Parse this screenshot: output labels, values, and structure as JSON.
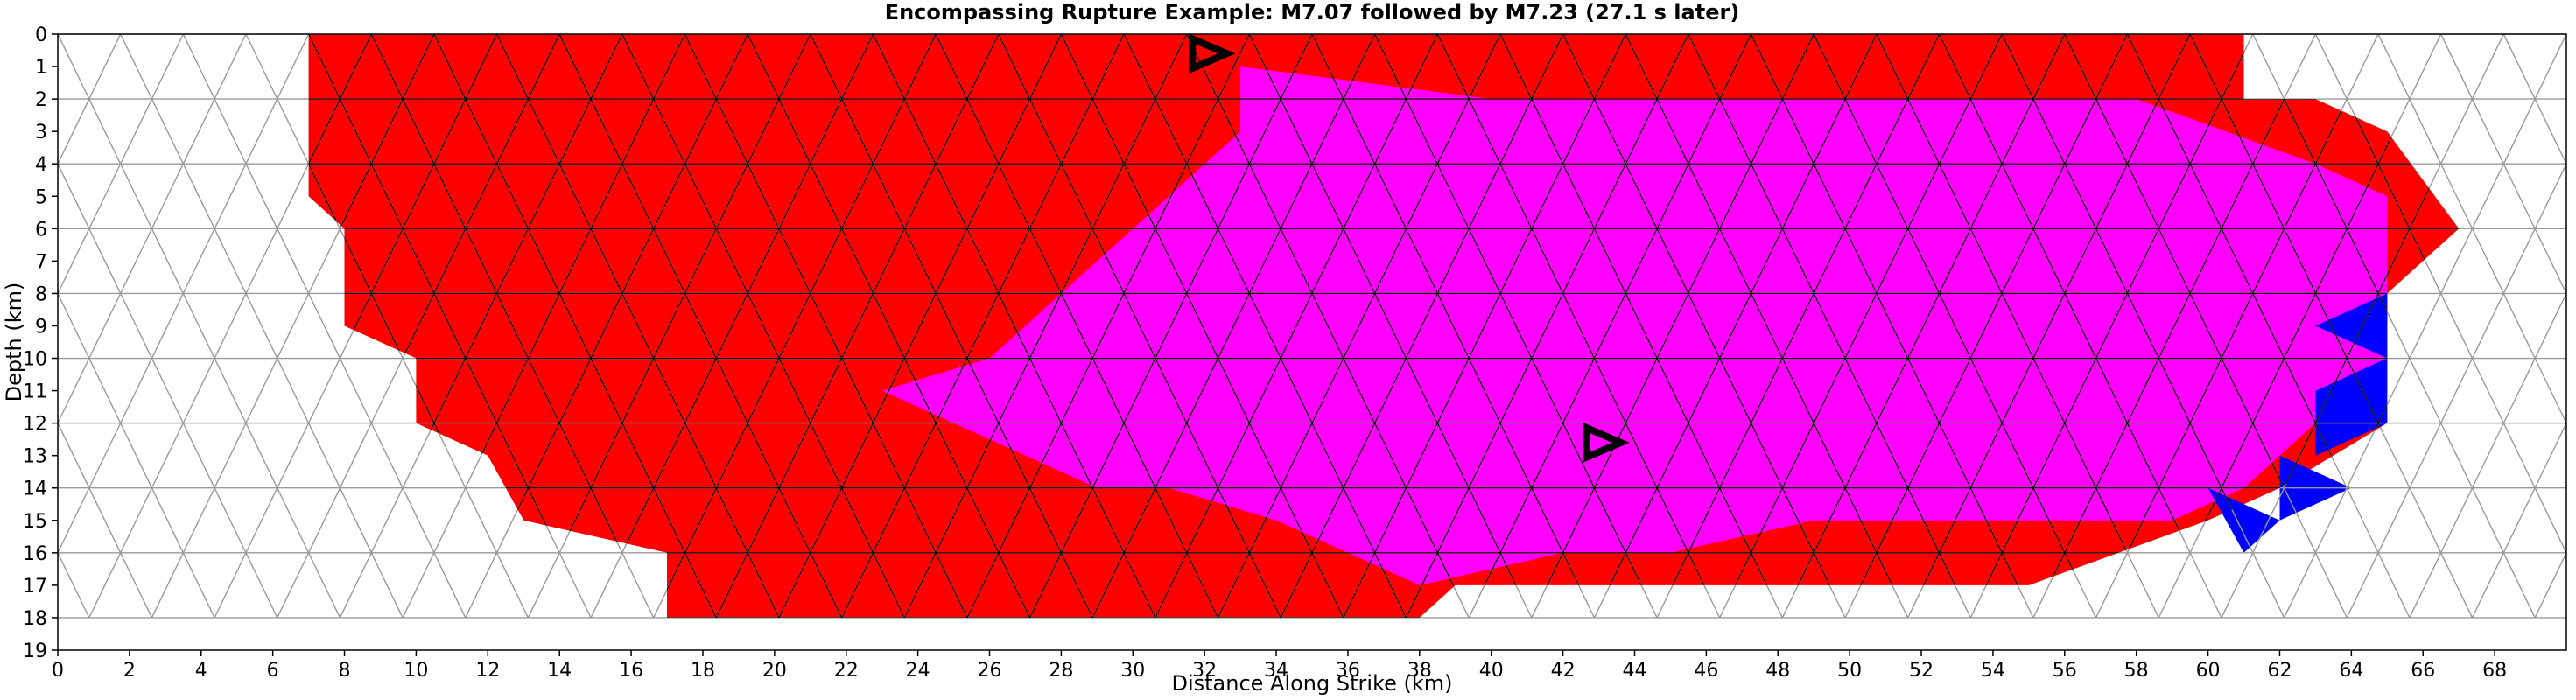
{
  "chart_data": {
    "type": "heatmap",
    "title": "Encompassing Rupture Example: M7.07 followed by M7.23 (27.1 s later)",
    "xlabel": "Distance Along Strike (km)",
    "ylabel": "Depth (km)",
    "xlim": [
      0,
      70
    ],
    "ylim": [
      19,
      0
    ],
    "xticks": [
      0,
      2,
      4,
      6,
      8,
      10,
      12,
      14,
      16,
      18,
      20,
      22,
      24,
      26,
      28,
      30,
      32,
      34,
      36,
      38,
      40,
      42,
      44,
      46,
      48,
      50,
      52,
      54,
      56,
      58,
      60,
      62,
      64,
      66,
      68
    ],
    "yticks": [
      0,
      1,
      2,
      3,
      4,
      5,
      6,
      7,
      8,
      9,
      10,
      11,
      12,
      13,
      14,
      15,
      16,
      17,
      18,
      19
    ],
    "grid": "triangular fault mesh",
    "mesh": {
      "x_range": [
        0,
        70
      ],
      "depth_range": [
        0,
        18
      ],
      "triangle_width_km": 1.75,
      "triangle_height_km": 2
    },
    "colors": {
      "first_event": "#ff0000",
      "second_event": "#ff00ff",
      "other": "#0000ff",
      "unruptured": "#ffffff",
      "mesh_line": "#9a9a9a",
      "rupture_line": "#000000"
    },
    "series": [
      {
        "name": "M7.07",
        "color": "#ff0000"
      },
      {
        "name": "M7.23 (27.1 s later)",
        "color": "#ff00ff"
      }
    ],
    "regions": {
      "first_event": [
        [
          7,
          0
        ],
        [
          61,
          0
        ],
        [
          61,
          2
        ],
        [
          63,
          2
        ],
        [
          65,
          3
        ],
        [
          67,
          6
        ],
        [
          65,
          8
        ],
        [
          65,
          12
        ],
        [
          62,
          14
        ],
        [
          60,
          15
        ],
        [
          55,
          17
        ],
        [
          39,
          17
        ],
        [
          38,
          18
        ],
        [
          17,
          18
        ],
        [
          17,
          16
        ],
        [
          13,
          15
        ],
        [
          12,
          13
        ],
        [
          10,
          12
        ],
        [
          10,
          10
        ],
        [
          8,
          9
        ],
        [
          8,
          6
        ],
        [
          7,
          5
        ]
      ],
      "second_event": [
        [
          33,
          3
        ],
        [
          33,
          1
        ],
        [
          40,
          2
        ],
        [
          48,
          2
        ],
        [
          58,
          2
        ],
        [
          63,
          4
        ],
        [
          65,
          5
        ],
        [
          65,
          11
        ],
        [
          63,
          12
        ],
        [
          61,
          14
        ],
        [
          59,
          15
        ],
        [
          55,
          15
        ],
        [
          49,
          15
        ],
        [
          45,
          16
        ],
        [
          42,
          16
        ],
        [
          38,
          17
        ],
        [
          34,
          15
        ],
        [
          31,
          14
        ],
        [
          29,
          14
        ],
        [
          25,
          12
        ],
        [
          23,
          11
        ],
        [
          26,
          10
        ],
        [
          28,
          8
        ],
        [
          30,
          6
        ]
      ],
      "other": [
        [
          63,
          9
        ],
        [
          65,
          8
        ],
        [
          65,
          10
        ],
        [
          63,
          9
        ]
      ],
      "other_2": [
        [
          63,
          11
        ],
        [
          65,
          10
        ],
        [
          65,
          12
        ],
        [
          63,
          13
        ]
      ],
      "other_3": [
        [
          62,
          13
        ],
        [
          64,
          14
        ],
        [
          62,
          15
        ]
      ],
      "other_4": [
        [
          60,
          14
        ],
        [
          62,
          15
        ],
        [
          61,
          16
        ]
      ]
    },
    "hypocenters": [
      {
        "event": "M7.07",
        "x": 32,
        "depth": 0.6
      },
      {
        "event": "M7.23",
        "x": 43,
        "depth": 12.6
      }
    ]
  }
}
